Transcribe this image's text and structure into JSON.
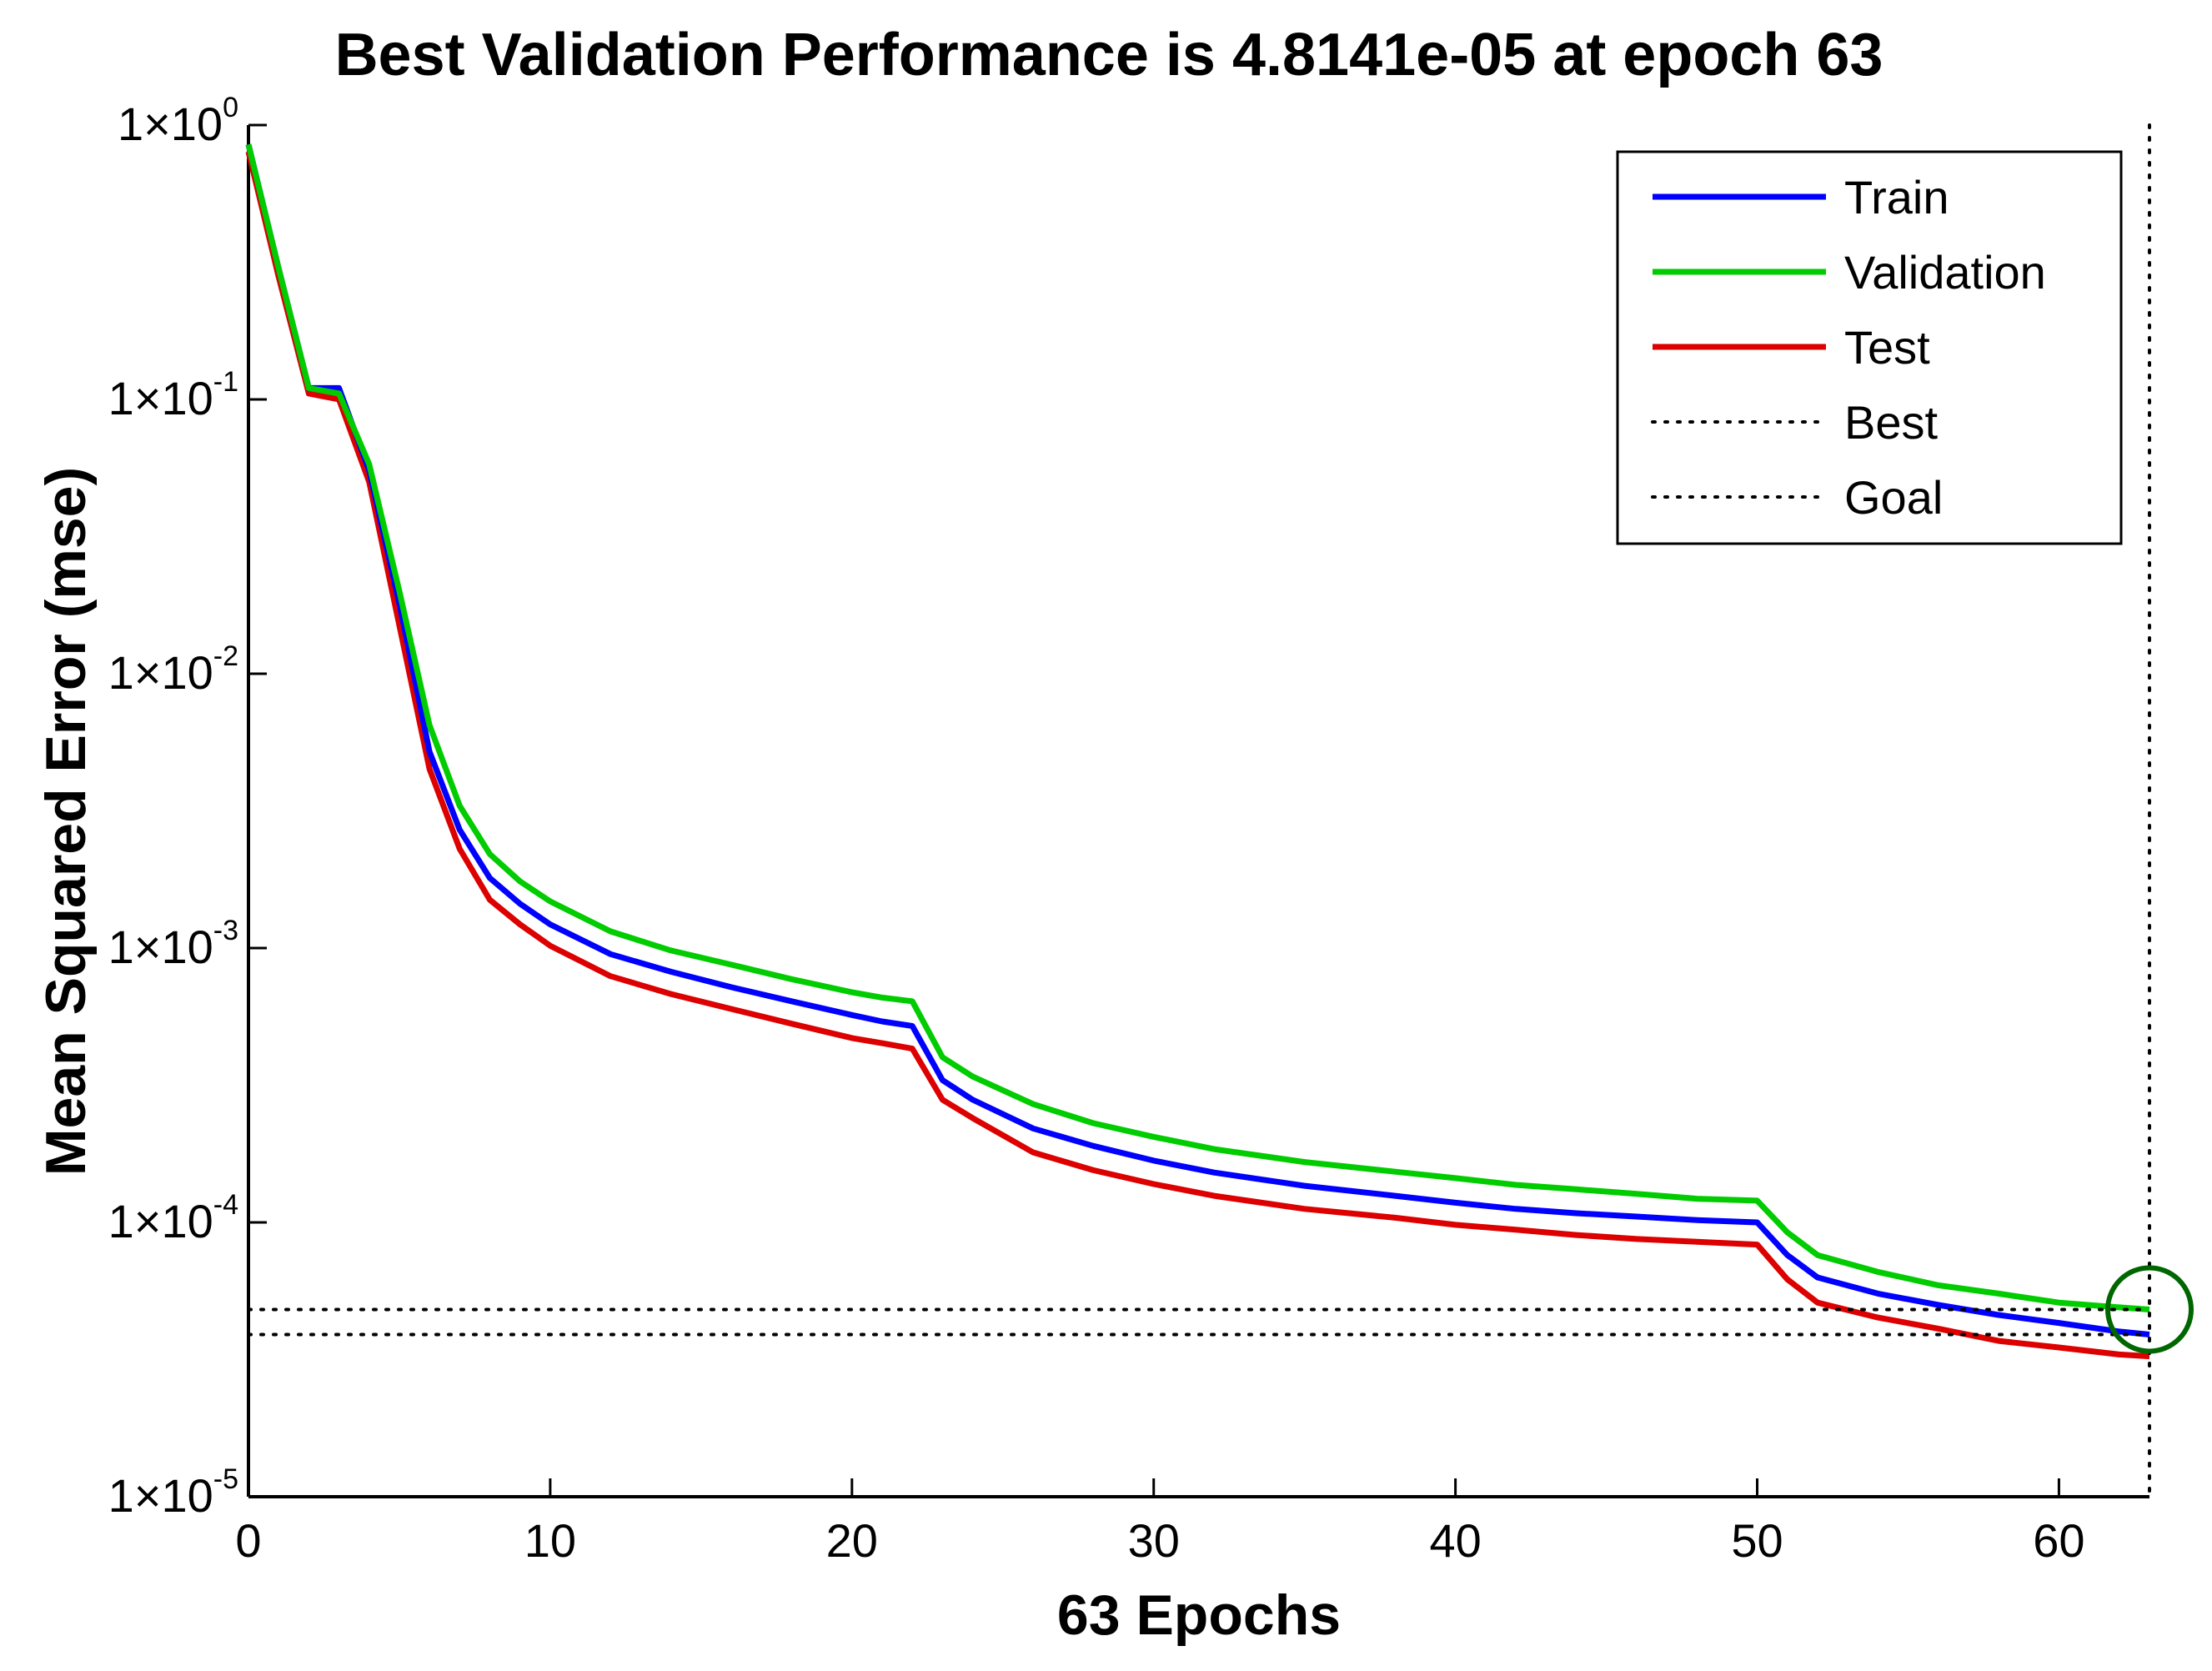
{
  "chart_data": {
    "type": "line",
    "title": "Best Validation Performance is 4.8141e-05 at epoch 63",
    "xlabel": "63 Epochs",
    "ylabel": "Mean Squared Error  (mse)",
    "xlim": [
      0,
      63
    ],
    "ylim": [
      1e-05,
      1
    ],
    "yscale": "log",
    "x_ticks": [
      0,
      10,
      20,
      30,
      40,
      50,
      60
    ],
    "y_ticks": [
      {
        "base": "1×10",
        "exp": "0",
        "value": 1
      },
      {
        "base": "1×10",
        "exp": "-1",
        "value": 0.1
      },
      {
        "base": "1×10",
        "exp": "-2",
        "value": 0.01
      },
      {
        "base": "1×10",
        "exp": "-3",
        "value": 0.001
      },
      {
        "base": "1×10",
        "exp": "-4",
        "value": 0.0001
      },
      {
        "base": "1×10",
        "exp": "-5",
        "value": 1e-05
      }
    ],
    "grid": false,
    "legend_position": "top-right",
    "series": [
      {
        "name": "Train",
        "color": "#0000ff",
        "style": "solid",
        "x": [
          0,
          1,
          2,
          3,
          4,
          5,
          6,
          7,
          8,
          9,
          10,
          12,
          14,
          16,
          18,
          20,
          21,
          22,
          23,
          24,
          26,
          28,
          30,
          32,
          35,
          38,
          40,
          42,
          44,
          46,
          48,
          50,
          51,
          52,
          54,
          56,
          58,
          60,
          62,
          63
        ],
        "y": [
          0.85,
          0.3,
          0.11,
          0.11,
          0.055,
          0.018,
          0.0052,
          0.0027,
          0.0018,
          0.00145,
          0.00122,
          0.00095,
          0.00082,
          0.00072,
          0.00064,
          0.00057,
          0.00054,
          0.00052,
          0.00033,
          0.00028,
          0.00022,
          0.00019,
          0.000168,
          0.000152,
          0.000136,
          0.000125,
          0.000118,
          0.000112,
          0.000108,
          0.000105,
          0.000102,
          0.0001,
          7.6e-05,
          6.3e-05,
          5.5e-05,
          5e-05,
          4.6e-05,
          4.3e-05,
          4e-05,
          3.9e-05
        ]
      },
      {
        "name": "Validation",
        "color": "#00cc00",
        "style": "solid",
        "x": [
          0,
          1,
          2,
          3,
          4,
          5,
          6,
          7,
          8,
          9,
          10,
          12,
          14,
          16,
          18,
          20,
          21,
          22,
          23,
          24,
          26,
          28,
          30,
          32,
          35,
          38,
          40,
          42,
          44,
          46,
          48,
          50,
          51,
          52,
          54,
          56,
          58,
          60,
          62,
          63
        ],
        "y": [
          0.85,
          0.3,
          0.11,
          0.105,
          0.058,
          0.02,
          0.0065,
          0.0033,
          0.0022,
          0.00175,
          0.00148,
          0.00115,
          0.00098,
          0.00087,
          0.00077,
          0.00069,
          0.00066,
          0.00064,
          0.0004,
          0.00034,
          0.00027,
          0.00023,
          0.000205,
          0.000185,
          0.000166,
          0.000153,
          0.000145,
          0.000137,
          0.000132,
          0.000127,
          0.000122,
          0.00012,
          9.2e-05,
          7.6e-05,
          6.6e-05,
          5.9e-05,
          5.5e-05,
          5.1e-05,
          4.9e-05,
          4.8141e-05
        ]
      },
      {
        "name": "Test",
        "color": "#dd0000",
        "style": "solid",
        "x": [
          0,
          1,
          2,
          3,
          4,
          5,
          6,
          7,
          8,
          9,
          10,
          12,
          14,
          16,
          18,
          20,
          21,
          22,
          23,
          24,
          26,
          28,
          30,
          32,
          35,
          38,
          40,
          42,
          44,
          46,
          48,
          50,
          51,
          52,
          54,
          56,
          58,
          60,
          62,
          63
        ],
        "y": [
          0.8,
          0.28,
          0.105,
          0.1,
          0.05,
          0.015,
          0.0045,
          0.0023,
          0.0015,
          0.00122,
          0.00102,
          0.00079,
          0.00068,
          0.0006,
          0.00053,
          0.00047,
          0.00045,
          0.00043,
          0.00028,
          0.00024,
          0.00018,
          0.000155,
          0.000138,
          0.000125,
          0.000112,
          0.000104,
          9.8e-05,
          9.4e-05,
          9e-05,
          8.7e-05,
          8.5e-05,
          8.3e-05,
          6.2e-05,
          5.1e-05,
          4.5e-05,
          4.1e-05,
          3.7e-05,
          3.5e-05,
          3.3e-05,
          3.25e-05
        ]
      },
      {
        "name": "Best",
        "color": "#000000",
        "style": "dotted",
        "kind": "marker-lines",
        "x_value": 63,
        "y_value": 4.8141e-05
      },
      {
        "name": "Goal",
        "color": "#000000",
        "style": "dotted",
        "kind": "hline",
        "y_value": 3.9e-05
      }
    ],
    "best_marker": {
      "x": 63,
      "y": 4.8141e-05,
      "color": "#006600",
      "shape": "circle"
    }
  }
}
